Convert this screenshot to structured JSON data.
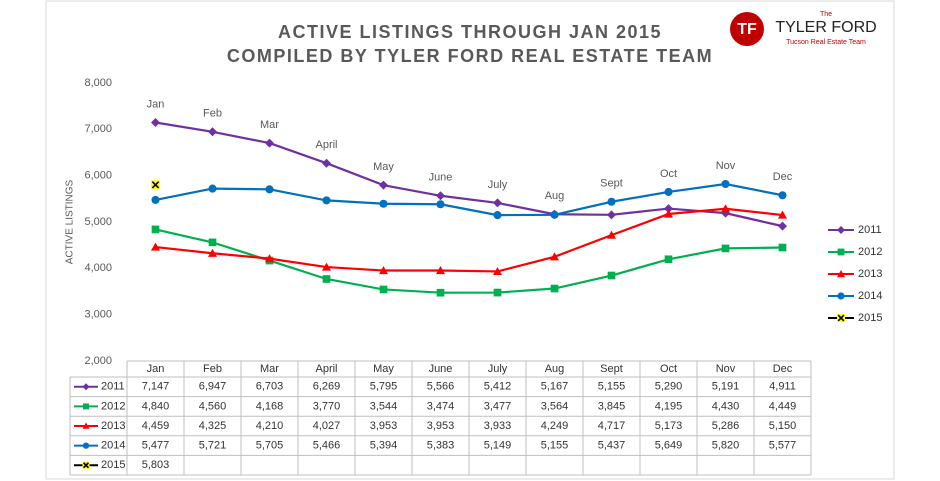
{
  "chart_data": {
    "type": "line",
    "title": "ACTIVE LISTINGS THROUGH JAN 2015",
    "subtitle": "COMPILED BY TYLER FORD REAL ESTATE TEAM",
    "y_label": "ACTIVE LISTINGS",
    "logo": {
      "mark": "TF",
      "the": "The",
      "name": "TYLER FORD",
      "tagline": "Tucson Real Estate Team"
    },
    "categories": [
      "Jan",
      "Feb",
      "Mar",
      "April",
      "May",
      "June",
      "July",
      "Aug",
      "Sept",
      "Oct",
      "Nov",
      "Dec"
    ],
    "ylim": [
      2000,
      8000
    ],
    "yticks": [
      {
        "value": 2000,
        "label": "2,000"
      },
      {
        "value": 3000,
        "label": "3,000"
      },
      {
        "value": 4000,
        "label": "4,000"
      },
      {
        "value": 5000,
        "label": "5,000"
      },
      {
        "value": 6000,
        "label": "6,000"
      },
      {
        "value": 7000,
        "label": "7,000"
      },
      {
        "value": 8000,
        "label": "8,000"
      }
    ],
    "grid": false,
    "legend": "right",
    "series": [
      {
        "name": "2011",
        "color": "#7030a0",
        "marker": "diamond",
        "values": [
          7147,
          6947,
          6703,
          6269,
          5795,
          5566,
          5412,
          5167,
          5155,
          5290,
          5191,
          4911
        ],
        "value_labels": [
          "7,147",
          "6,947",
          "6,703",
          "6,269",
          "5,795",
          "5,566",
          "5,412",
          "5,167",
          "5,155",
          "5,290",
          "5,191",
          "4,911"
        ]
      },
      {
        "name": "2012",
        "color": "#00b050",
        "marker": "square",
        "values": [
          4840,
          4560,
          4168,
          3770,
          3544,
          3474,
          3477,
          3564,
          3845,
          4195,
          4430,
          4449
        ],
        "value_labels": [
          "4,840",
          "4,560",
          "4,168",
          "3,770",
          "3,544",
          "3,474",
          "3,477",
          "3,564",
          "3,845",
          "4,195",
          "4,430",
          "4,449"
        ]
      },
      {
        "name": "2013",
        "color": "#ff0000",
        "marker": "triangle",
        "values": [
          4459,
          4325,
          4210,
          4027,
          3953,
          3953,
          3933,
          4249,
          4717,
          5173,
          5286,
          5150
        ],
        "value_labels": [
          "4,459",
          "4,325",
          "4,210",
          "4,027",
          "3,953",
          "3,953",
          "3,933",
          "4,249",
          "4,717",
          "5,173",
          "5,286",
          "5,150"
        ]
      },
      {
        "name": "2014",
        "color": "#0070c0",
        "marker": "circle",
        "values": [
          5477,
          5721,
          5705,
          5466,
          5394,
          5383,
          5149,
          5155,
          5437,
          5649,
          5820,
          5577
        ],
        "value_labels": [
          "5,477",
          "5,721",
          "5,705",
          "5,466",
          "5,394",
          "5,383",
          "5,149",
          "5,155",
          "5,437",
          "5,649",
          "5,820",
          "5,577"
        ]
      },
      {
        "name": "2015",
        "color": "#000000",
        "marker": "x",
        "values": [
          5803,
          null,
          null,
          null,
          null,
          null,
          null,
          null,
          null,
          null,
          null,
          null
        ],
        "value_labels": [
          "5,803",
          null,
          null,
          null,
          null,
          null,
          null,
          null,
          null,
          null,
          null,
          null
        ]
      }
    ]
  }
}
